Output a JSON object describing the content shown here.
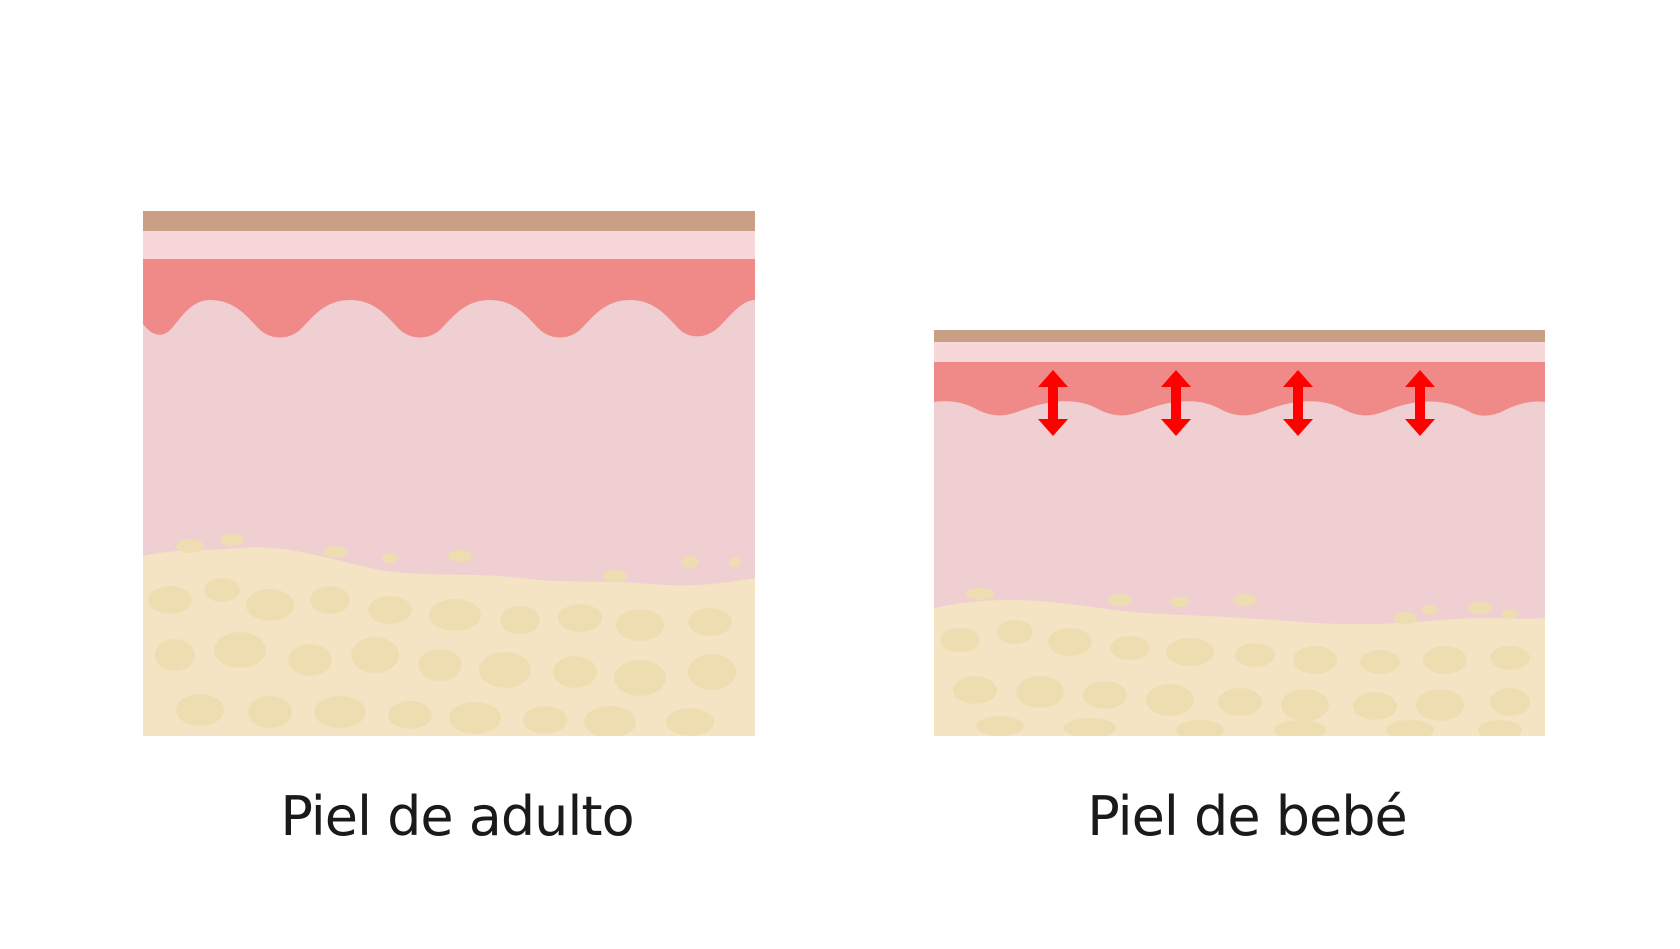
{
  "diagrams": [
    {
      "id": "adult",
      "caption": "Piel de adulto",
      "has_arrows": false
    },
    {
      "id": "baby",
      "caption": "Piel de bebé",
      "has_arrows": true,
      "arrow_count": 4
    }
  ],
  "colors": {
    "stratum_corneum": "#C9A086",
    "epidermis_light": "#F8D7DA",
    "epidermis_basal": "#EF8A88",
    "dermis": "#EFCFD1",
    "fat_base": "#F4E4C4",
    "fat_cells": "#EFDDB2",
    "arrow": "#FF0000",
    "caption_text": "#1a1a1a",
    "background": "#FFFFFF"
  }
}
